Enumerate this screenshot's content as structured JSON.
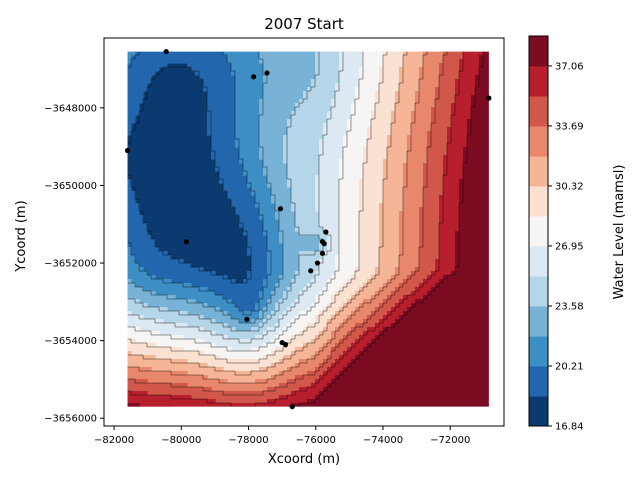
{
  "chart_data": {
    "type": "contour",
    "title": "2007 Start",
    "xlabel": "Xcoord (m)",
    "ylabel": "Ycoord (m)",
    "colorbar_label": "Water Level (mamsl)",
    "xlim": [
      -82300,
      -70400
    ],
    "ylim": [
      -3656200,
      -3646200
    ],
    "data_extent": {
      "x": [
        -81600,
        -70850
      ],
      "y": [
        -3655700,
        -3646550
      ]
    },
    "x_ticks": [
      -82000,
      -80000,
      -78000,
      -76000,
      -74000,
      -72000
    ],
    "x_tick_labels": [
      "−82000",
      "−80000",
      "−78000",
      "−76000",
      "−74000",
      "−72000"
    ],
    "y_ticks": [
      -3656000,
      -3654000,
      -3652000,
      -3650000,
      -3648000
    ],
    "y_tick_labels": [
      "−3656000",
      "−3654000",
      "−3652000",
      "−3650000",
      "−3648000"
    ],
    "colorbar_range": [
      16.84,
      38.74
    ],
    "colorbar_ticks": [
      16.84,
      20.21,
      23.58,
      26.95,
      30.32,
      33.69,
      37.06
    ],
    "colorbar_tick_labels": [
      "16.84",
      "20.21",
      "23.58",
      "26.95",
      "30.32",
      "33.69",
      "37.06"
    ],
    "colormap": "RdBu_r",
    "levels": [
      16.84,
      18.52,
      20.21,
      21.89,
      23.58,
      25.26,
      26.95,
      28.63,
      30.32,
      32.0,
      33.69,
      35.37,
      37.06,
      38.74
    ],
    "level_colors": [
      "#0b3a70",
      "#2266ad",
      "#3d8ec4",
      "#78b3d7",
      "#b5d5e8",
      "#dce9f2",
      "#f6f5f4",
      "#fbe1d2",
      "#f6b596",
      "#e8876b",
      "#d05749",
      "#b81f2e",
      "#7b0c22"
    ],
    "wells": [
      {
        "x": -81600,
        "y": -3649100
      },
      {
        "x": -80450,
        "y": -3646550
      },
      {
        "x": -79850,
        "y": -3651450
      },
      {
        "x": -77850,
        "y": -3647200
      },
      {
        "x": -77450,
        "y": -3647100
      },
      {
        "x": -78050,
        "y": -3653450
      },
      {
        "x": -77050,
        "y": -3650600
      },
      {
        "x": -76700,
        "y": -3655700
      },
      {
        "x": -77000,
        "y": -3654050
      },
      {
        "x": -76900,
        "y": -3654100
      },
      {
        "x": -75700,
        "y": -3651200
      },
      {
        "x": -75800,
        "y": -3651450
      },
      {
        "x": -75750,
        "y": -3651500
      },
      {
        "x": -75800,
        "y": -3651750
      },
      {
        "x": -75950,
        "y": -3652000
      },
      {
        "x": -76150,
        "y": -3652200
      },
      {
        "x": -70850,
        "y": -3647750
      }
    ]
  }
}
